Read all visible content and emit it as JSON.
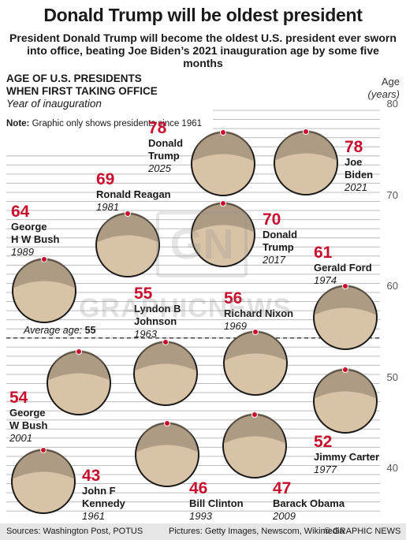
{
  "header": {
    "title": "Donald Trump will be oldest president",
    "subtitle": "President Donald Trump will become the oldest U.S. president ever sworn into office, beating Joe Biden’s 2021 inauguration age by some five months"
  },
  "note": {
    "bold": "Note:",
    "text": "Graphic only shows presidents since 1961"
  },
  "average": {
    "prefix": "Average age:",
    "value": "55"
  },
  "watermark": {
    "text": "GRAPHICNEWS",
    "logo": "GN"
  },
  "footer": {
    "sources": "Sources: Washington Post, POTUS",
    "pictures": "Pictures: Getty Images, Newscom, Wikimedia",
    "credit": "© GRAPHIC NEWS"
  },
  "colors": {
    "accent": "#c8102e",
    "grid": "#bcbcbc",
    "footer_bg": "#e6e6e6"
  },
  "chart_data": {
    "type": "scatter",
    "title": "AGE OF U.S. PRESIDENTS WHEN FIRST TAKING OFFICE",
    "subtitle": "Year of inauguration",
    "ylabel": "Age",
    "yunit": "(years)",
    "ylim": [
      35,
      80
    ],
    "yticks": [
      40,
      50,
      60,
      70,
      80
    ],
    "grid": true,
    "average_age": 55,
    "presidents": [
      {
        "name": "Donald Trump",
        "age": 78,
        "year": 2025,
        "age_label": "78",
        "name_lines": [
          "Donald",
          "Trump"
        ],
        "year_label": "2025"
      },
      {
        "name": "Joe Biden",
        "age": 78,
        "year": 2021,
        "age_label": "78",
        "name_lines": [
          "Joe",
          "Biden"
        ],
        "year_label": "2021"
      },
      {
        "name": "Donald Trump",
        "age": 70,
        "year": 2017,
        "age_label": "70",
        "name_lines": [
          "Donald",
          "Trump"
        ],
        "year_label": "2017"
      },
      {
        "name": "Ronald Reagan",
        "age": 69,
        "year": 1981,
        "age_label": "69",
        "name_lines": [
          "Ronald Reagan"
        ],
        "year_label": "1981"
      },
      {
        "name": "George H W Bush",
        "age": 64,
        "year": 1989,
        "age_label": "64",
        "name_lines": [
          "George",
          "H W Bush"
        ],
        "year_label": "1989"
      },
      {
        "name": "Gerald Ford",
        "age": 61,
        "year": 1974,
        "age_label": "61",
        "name_lines": [
          "Gerald Ford"
        ],
        "year_label": "1974"
      },
      {
        "name": "Lyndon B Johnson",
        "age": 55,
        "year": 1963,
        "age_label": "55",
        "name_lines": [
          "Lyndon B",
          "Johnson"
        ],
        "year_label": "1963"
      },
      {
        "name": "Richard Nixon",
        "age": 56,
        "year": 1969,
        "age_label": "56",
        "name_lines": [
          "Richard Nixon"
        ],
        "year_label": "1969"
      },
      {
        "name": "George W Bush",
        "age": 54,
        "year": 2001,
        "age_label": "54",
        "name_lines": [
          "George",
          "W Bush"
        ],
        "year_label": "2001"
      },
      {
        "name": "Jimmy Carter",
        "age": 52,
        "year": 1977,
        "age_label": "52",
        "name_lines": [
          "Jimmy Carter"
        ],
        "year_label": "1977"
      },
      {
        "name": "John F Kennedy",
        "age": 43,
        "year": 1961,
        "age_label": "43",
        "name_lines": [
          "John F",
          "Kennedy"
        ],
        "year_label": "1961"
      },
      {
        "name": "Bill Clinton",
        "age": 46,
        "year": 1993,
        "age_label": "46",
        "name_lines": [
          "Bill Clinton"
        ],
        "year_label": "1993"
      },
      {
        "name": "Barack Obama",
        "age": 47,
        "year": 2009,
        "age_label": "47",
        "name_lines": [
          "Barack Obama"
        ],
        "year_label": "2009"
      }
    ]
  }
}
